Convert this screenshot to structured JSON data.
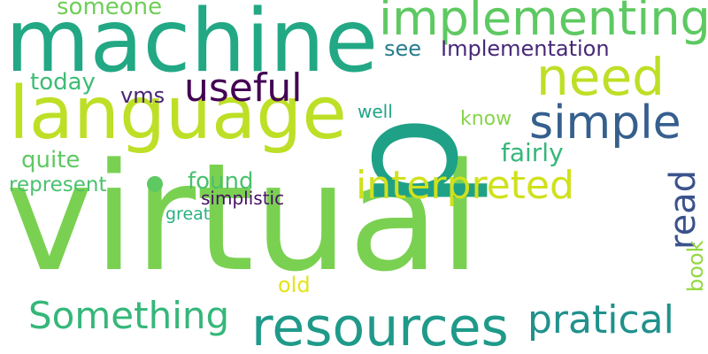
{
  "words": [
    {
      "text": "virtual",
      "color": "#7ad151"
    },
    {
      "text": "machine",
      "color": "#22a884"
    },
    {
      "text": "language",
      "color": "#bddf26"
    },
    {
      "text": "p",
      "color": "#1fa187",
      "orientation": "vertical"
    },
    {
      "text": "implementing",
      "color": "#5ec962"
    },
    {
      "text": "need",
      "color": "#bddf26"
    },
    {
      "text": "simple",
      "color": "#355f8d"
    },
    {
      "text": "useful",
      "color": "#440154"
    },
    {
      "text": "interpreted",
      "color": "#d0e11c"
    },
    {
      "text": "resources",
      "color": "#1f9a8a"
    },
    {
      "text": "Something",
      "color": "#35b779"
    },
    {
      "text": "pratical",
      "color": "#21918c"
    },
    {
      "text": "read",
      "color": "#3b528b",
      "orientation": "vertical"
    },
    {
      "text": "someone",
      "color": "#6ece58"
    },
    {
      "text": "see",
      "color": "#287c8e"
    },
    {
      "text": "Implementation",
      "color": "#482878"
    },
    {
      "text": "today",
      "color": "#3dbc74"
    },
    {
      "text": "vms",
      "color": "#482475"
    },
    {
      "text": "well",
      "color": "#20a486"
    },
    {
      "text": "know",
      "color": "#86d549"
    },
    {
      "text": "fairly",
      "color": "#35b779"
    },
    {
      "text": "quite",
      "color": "#5ec962"
    },
    {
      "text": "found",
      "color": "#4ac16d"
    },
    {
      "text": "represent",
      "color": "#4ac16d"
    },
    {
      "text": "simplistic",
      "color": "#471063"
    },
    {
      "text": "great",
      "color": "#2ab07f"
    },
    {
      "text": "old",
      "color": "#e5e419"
    },
    {
      "text": "book",
      "color": "#95d840",
      "orientation": "vertical"
    }
  ],
  "dot": {
    "color": "#5ec962"
  }
}
